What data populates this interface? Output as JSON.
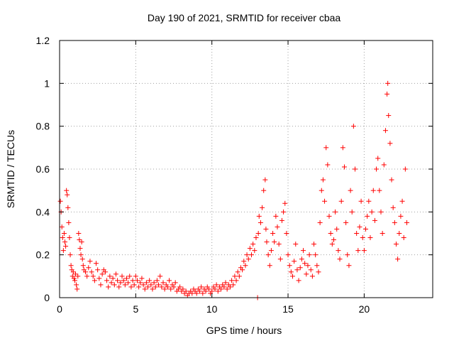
{
  "chart_data": {
    "type": "scatter",
    "title": "Day 190 of 2021, SRMTID for receiver cbaa",
    "xlabel": "GPS time / hours",
    "ylabel": "SRMTID / TECUs",
    "xlim": [
      0,
      24.5
    ],
    "ylim": [
      0,
      1.2
    ],
    "xticks": [
      0,
      5,
      10,
      15,
      20
    ],
    "xtick_labels": [
      "0",
      "5",
      "10",
      "15",
      "20"
    ],
    "yticks": [
      0,
      0.2,
      0.4,
      0.6,
      0.8,
      1.0,
      1.2
    ],
    "ytick_labels": [
      "0",
      "0.2",
      "0.4",
      "0.6",
      "0.8",
      "1",
      "1.2"
    ],
    "grid": true,
    "marker": "+",
    "color": "#ff0000",
    "series": [
      {
        "name": "SRMTID",
        "points": [
          [
            0.05,
            0.45
          ],
          [
            0.1,
            0.4
          ],
          [
            0.15,
            0.33
          ],
          [
            0.2,
            0.28
          ],
          [
            0.25,
            0.22
          ],
          [
            0.3,
            0.3
          ],
          [
            0.35,
            0.26
          ],
          [
            0.4,
            0.24
          ],
          [
            0.45,
            0.5
          ],
          [
            0.5,
            0.48
          ],
          [
            0.55,
            0.42
          ],
          [
            0.6,
            0.35
          ],
          [
            0.65,
            0.28
          ],
          [
            0.7,
            0.2
          ],
          [
            0.75,
            0.15
          ],
          [
            0.8,
            0.13
          ],
          [
            0.85,
            0.1
          ],
          [
            0.9,
            0.12
          ],
          [
            0.95,
            0.09
          ],
          [
            1.0,
            0.08
          ],
          [
            1.05,
            0.11
          ],
          [
            1.1,
            0.06
          ],
          [
            1.15,
            0.04
          ],
          [
            1.2,
            0.1
          ],
          [
            1.25,
            0.3
          ],
          [
            1.3,
            0.27
          ],
          [
            1.35,
            0.23
          ],
          [
            1.4,
            0.2
          ],
          [
            1.45,
            0.26
          ],
          [
            1.5,
            0.18
          ],
          [
            1.55,
            0.15
          ],
          [
            1.6,
            0.13
          ],
          [
            1.7,
            0.12
          ],
          [
            1.8,
            0.1
          ],
          [
            1.9,
            0.14
          ],
          [
            2.0,
            0.17
          ],
          [
            2.1,
            0.12
          ],
          [
            2.2,
            0.1
          ],
          [
            2.3,
            0.08
          ],
          [
            2.4,
            0.16
          ],
          [
            2.5,
            0.13
          ],
          [
            2.6,
            0.09
          ],
          [
            2.7,
            0.06
          ],
          [
            2.8,
            0.11
          ],
          [
            2.9,
            0.13
          ],
          [
            3.0,
            0.12
          ],
          [
            3.1,
            0.08
          ],
          [
            3.2,
            0.05
          ],
          [
            3.3,
            0.1
          ],
          [
            3.4,
            0.07
          ],
          [
            3.5,
            0.09
          ],
          [
            3.6,
            0.06
          ],
          [
            3.7,
            0.11
          ],
          [
            3.8,
            0.08
          ],
          [
            3.9,
            0.05
          ],
          [
            4.0,
            0.07
          ],
          [
            4.1,
            0.1
          ],
          [
            4.2,
            0.08
          ],
          [
            4.3,
            0.06
          ],
          [
            4.4,
            0.09
          ],
          [
            4.5,
            0.07
          ],
          [
            4.6,
            0.1
          ],
          [
            4.7,
            0.05
          ],
          [
            4.8,
            0.08
          ],
          [
            4.9,
            0.06
          ],
          [
            5.0,
            0.1
          ],
          [
            5.1,
            0.08
          ],
          [
            5.2,
            0.05
          ],
          [
            5.3,
            0.07
          ],
          [
            5.4,
            0.09
          ],
          [
            5.5,
            0.06
          ],
          [
            5.6,
            0.04
          ],
          [
            5.7,
            0.07
          ],
          [
            5.8,
            0.05
          ],
          [
            5.9,
            0.08
          ],
          [
            6.0,
            0.06
          ],
          [
            6.1,
            0.04
          ],
          [
            6.2,
            0.07
          ],
          [
            6.3,
            0.05
          ],
          [
            6.4,
            0.08
          ],
          [
            6.5,
            0.06
          ],
          [
            6.6,
            0.1
          ],
          [
            6.7,
            0.05
          ],
          [
            6.8,
            0.07
          ],
          [
            6.9,
            0.04
          ],
          [
            7.0,
            0.06
          ],
          [
            7.1,
            0.05
          ],
          [
            7.2,
            0.08
          ],
          [
            7.3,
            0.04
          ],
          [
            7.4,
            0.06
          ],
          [
            7.5,
            0.05
          ],
          [
            7.6,
            0.07
          ],
          [
            7.7,
            0.03
          ],
          [
            7.8,
            0.04
          ],
          [
            7.9,
            0.05
          ],
          [
            8.0,
            0.03
          ],
          [
            8.1,
            0.04
          ],
          [
            8.2,
            0.02
          ],
          [
            8.3,
            0.03
          ],
          [
            8.4,
            0.01
          ],
          [
            8.5,
            0.02
          ],
          [
            8.6,
            0.03
          ],
          [
            8.7,
            0.02
          ],
          [
            8.8,
            0.04
          ],
          [
            8.9,
            0.03
          ],
          [
            9.0,
            0.02
          ],
          [
            9.1,
            0.04
          ],
          [
            9.2,
            0.03
          ],
          [
            9.3,
            0.05
          ],
          [
            9.4,
            0.02
          ],
          [
            9.5,
            0.04
          ],
          [
            9.6,
            0.03
          ],
          [
            9.7,
            0.05
          ],
          [
            9.8,
            0.04
          ],
          [
            9.9,
            0.02
          ],
          [
            10.0,
            0.03
          ],
          [
            10.1,
            0.05
          ],
          [
            10.2,
            0.04
          ],
          [
            10.3,
            0.06
          ],
          [
            10.4,
            0.03
          ],
          [
            10.5,
            0.05
          ],
          [
            10.6,
            0.04
          ],
          [
            10.7,
            0.06
          ],
          [
            10.8,
            0.05
          ],
          [
            10.9,
            0.07
          ],
          [
            11.0,
            0.04
          ],
          [
            11.1,
            0.06
          ],
          [
            11.2,
            0.05
          ],
          [
            11.3,
            0.08
          ],
          [
            11.4,
            0.06
          ],
          [
            11.5,
            0.1
          ],
          [
            11.6,
            0.08
          ],
          [
            11.7,
            0.12
          ],
          [
            11.8,
            0.1
          ],
          [
            11.9,
            0.14
          ],
          [
            12.0,
            0.13
          ],
          [
            12.1,
            0.17
          ],
          [
            12.2,
            0.15
          ],
          [
            12.3,
            0.2
          ],
          [
            12.4,
            0.18
          ],
          [
            12.5,
            0.23
          ],
          [
            12.6,
            0.2
          ],
          [
            12.7,
            0.25
          ],
          [
            12.8,
            0.22
          ],
          [
            12.9,
            0.28
          ],
          [
            13.0,
            0.0
          ],
          [
            13.05,
            0.3
          ],
          [
            13.1,
            0.38
          ],
          [
            13.2,
            0.35
          ],
          [
            13.3,
            0.42
          ],
          [
            13.4,
            0.5
          ],
          [
            13.5,
            0.55
          ],
          [
            13.55,
            0.32
          ],
          [
            13.6,
            0.26
          ],
          [
            13.7,
            0.2
          ],
          [
            13.8,
            0.15
          ],
          [
            13.9,
            0.22
          ],
          [
            14.0,
            0.3
          ],
          [
            14.1,
            0.26
          ],
          [
            14.2,
            0.38
          ],
          [
            14.3,
            0.33
          ],
          [
            14.4,
            0.25
          ],
          [
            14.5,
            0.18
          ],
          [
            14.6,
            0.36
          ],
          [
            14.7,
            0.4
          ],
          [
            14.8,
            0.44
          ],
          [
            14.9,
            0.3
          ],
          [
            15.0,
            0.2
          ],
          [
            15.1,
            0.15
          ],
          [
            15.2,
            0.12
          ],
          [
            15.3,
            0.1
          ],
          [
            15.4,
            0.17
          ],
          [
            15.5,
            0.25
          ],
          [
            15.6,
            0.13
          ],
          [
            15.7,
            0.08
          ],
          [
            15.8,
            0.14
          ],
          [
            15.9,
            0.18
          ],
          [
            16.0,
            0.22
          ],
          [
            16.1,
            0.16
          ],
          [
            16.2,
            0.11
          ],
          [
            16.3,
            0.15
          ],
          [
            16.4,
            0.2
          ],
          [
            16.5,
            0.13
          ],
          [
            16.6,
            0.1
          ],
          [
            16.7,
            0.25
          ],
          [
            16.8,
            0.2
          ],
          [
            16.9,
            0.15
          ],
          [
            17.0,
            0.12
          ],
          [
            17.1,
            0.35
          ],
          [
            17.2,
            0.5
          ],
          [
            17.3,
            0.55
          ],
          [
            17.4,
            0.45
          ],
          [
            17.5,
            0.7
          ],
          [
            17.6,
            0.62
          ],
          [
            17.7,
            0.38
          ],
          [
            17.8,
            0.3
          ],
          [
            17.9,
            0.25
          ],
          [
            18.0,
            0.27
          ],
          [
            18.1,
            0.4
          ],
          [
            18.2,
            0.32
          ],
          [
            18.3,
            0.22
          ],
          [
            18.4,
            0.18
          ],
          [
            18.5,
            0.45
          ],
          [
            18.6,
            0.7
          ],
          [
            18.7,
            0.61
          ],
          [
            18.8,
            0.35
          ],
          [
            18.9,
            0.2
          ],
          [
            19.0,
            0.15
          ],
          [
            19.1,
            0.5
          ],
          [
            19.2,
            0.4
          ],
          [
            19.3,
            0.8
          ],
          [
            19.4,
            0.6
          ],
          [
            19.5,
            0.3
          ],
          [
            19.6,
            0.22
          ],
          [
            19.7,
            0.33
          ],
          [
            19.8,
            0.45
          ],
          [
            19.9,
            0.28
          ],
          [
            20.0,
            0.22
          ],
          [
            20.1,
            0.32
          ],
          [
            20.2,
            0.38
          ],
          [
            20.3,
            0.45
          ],
          [
            20.4,
            0.28
          ],
          [
            20.5,
            0.4
          ],
          [
            20.6,
            0.5
          ],
          [
            20.7,
            0.36
          ],
          [
            20.8,
            0.6
          ],
          [
            20.9,
            0.65
          ],
          [
            21.0,
            0.5
          ],
          [
            21.1,
            0.4
          ],
          [
            21.2,
            0.3
          ],
          [
            21.3,
            0.62
          ],
          [
            21.4,
            0.78
          ],
          [
            21.5,
            0.95
          ],
          [
            21.55,
            1.0
          ],
          [
            21.6,
            0.85
          ],
          [
            21.7,
            0.72
          ],
          [
            21.8,
            0.55
          ],
          [
            21.9,
            0.42
          ],
          [
            22.0,
            0.35
          ],
          [
            22.1,
            0.25
          ],
          [
            22.2,
            0.18
          ],
          [
            22.3,
            0.3
          ],
          [
            22.4,
            0.38
          ],
          [
            22.5,
            0.45
          ],
          [
            22.6,
            0.28
          ],
          [
            22.7,
            0.6
          ],
          [
            22.8,
            0.35
          ]
        ]
      }
    ]
  }
}
